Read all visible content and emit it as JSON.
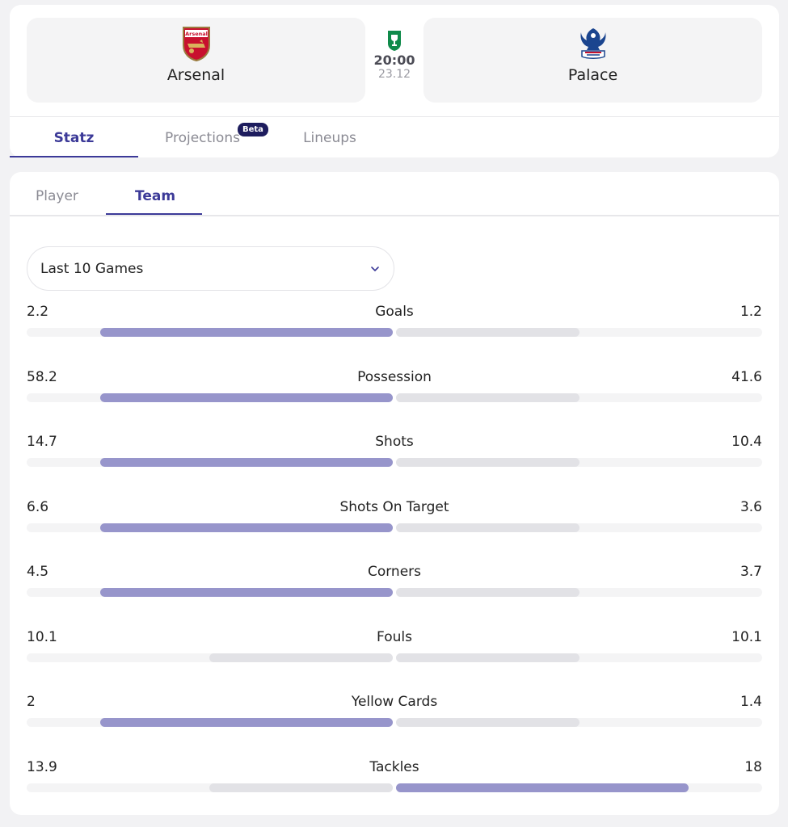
{
  "match": {
    "home_team": "Arsenal",
    "away_team": "Palace",
    "kickoff_time": "20:00",
    "date": "23.12",
    "home_crest_text": "Arsenal"
  },
  "tabs": [
    {
      "label": "Statz",
      "active": true
    },
    {
      "label": "Projections",
      "badge": "Beta",
      "active": false
    },
    {
      "label": "Lineups",
      "active": false
    }
  ],
  "sub_tabs": [
    {
      "label": "Player",
      "active": false
    },
    {
      "label": "Team",
      "active": true
    }
  ],
  "filter": {
    "selected": "Last 10 Games"
  },
  "colors": {
    "accent": "#3c3a98",
    "bar_leader": "#9795cb",
    "bar_other": "#e2e2e6",
    "track": "#f4f4f5",
    "beta_badge": "#1e1d5e"
  },
  "stats": [
    {
      "label": "Goals",
      "home": "2.2",
      "away": "1.2",
      "home_fill": 0.8,
      "away_fill": 0.5,
      "home_leads": true,
      "away_leads": false
    },
    {
      "label": "Possession",
      "home": "58.2",
      "away": "41.6",
      "home_fill": 0.8,
      "away_fill": 0.5,
      "home_leads": true,
      "away_leads": false
    },
    {
      "label": "Shots",
      "home": "14.7",
      "away": "10.4",
      "home_fill": 0.8,
      "away_fill": 0.5,
      "home_leads": true,
      "away_leads": false
    },
    {
      "label": "Shots On Target",
      "home": "6.6",
      "away": "3.6",
      "home_fill": 0.8,
      "away_fill": 0.5,
      "home_leads": true,
      "away_leads": false
    },
    {
      "label": "Corners",
      "home": "4.5",
      "away": "3.7",
      "home_fill": 0.8,
      "away_fill": 0.5,
      "home_leads": true,
      "away_leads": false
    },
    {
      "label": "Fouls",
      "home": "10.1",
      "away": "10.1",
      "home_fill": 0.5,
      "away_fill": 0.5,
      "home_leads": false,
      "away_leads": false
    },
    {
      "label": "Yellow Cards",
      "home": "2",
      "away": "1.4",
      "home_fill": 0.8,
      "away_fill": 0.5,
      "home_leads": true,
      "away_leads": false
    },
    {
      "label": "Tackles",
      "home": "13.9",
      "away": "18",
      "home_fill": 0.5,
      "away_fill": 0.8,
      "home_leads": false,
      "away_leads": true
    }
  ]
}
